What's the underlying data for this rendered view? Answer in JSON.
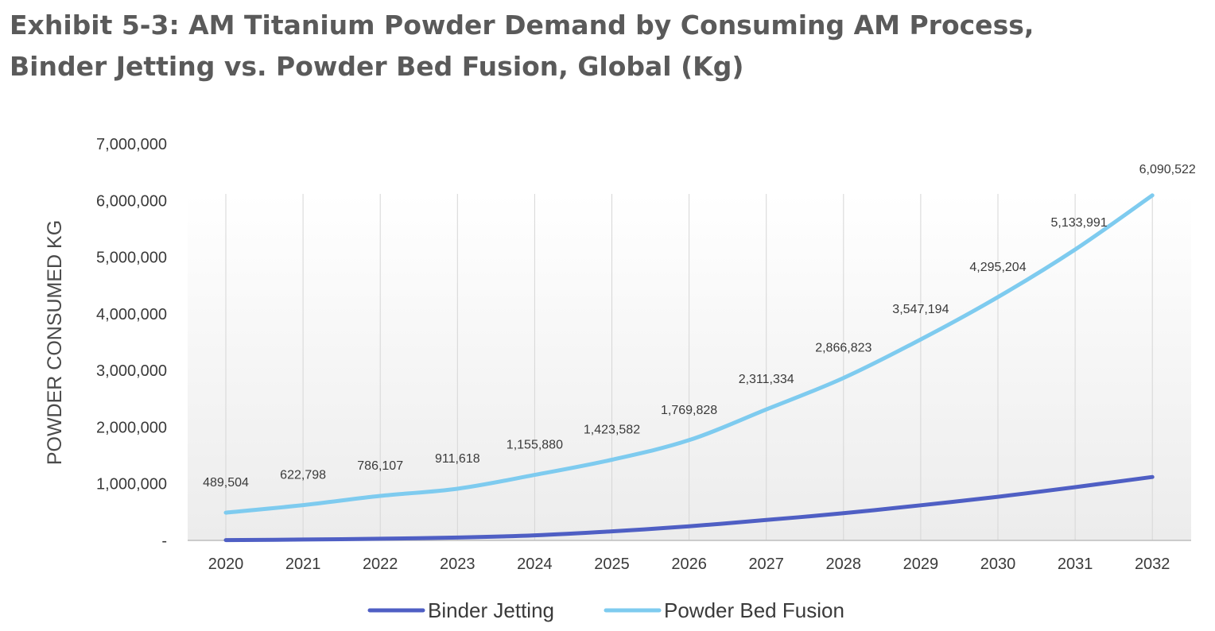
{
  "title": {
    "line1": "Exhibit 5-3: AM Titanium Powder Demand by Consuming AM Process,",
    "line2": "Binder Jetting vs. Powder Bed Fusion, Global (Kg)"
  },
  "chart_data": {
    "type": "line",
    "title": "Exhibit 5-3: AM Titanium Powder Demand by Consuming AM Process, Binder Jetting vs. Powder Bed Fusion, Global (Kg)",
    "xlabel": "",
    "ylabel": "POWDER CONSUMED KG",
    "categories": [
      "2020",
      "2021",
      "2022",
      "2023",
      "2024",
      "2025",
      "2026",
      "2027",
      "2028",
      "2029",
      "2030",
      "2031",
      "2032"
    ],
    "ylim": [
      0,
      7000000
    ],
    "yticks": [
      0,
      1000000,
      2000000,
      3000000,
      4000000,
      5000000,
      6000000,
      7000000
    ],
    "ytick_labels": [
      "-",
      "1,000,000",
      "2,000,000",
      "3,000,000",
      "4,000,000",
      "5,000,000",
      "6,000,000",
      "7,000,000"
    ],
    "legend_position": "bottom",
    "grid": "vertical lines at categories",
    "series": [
      {
        "name": "Binder Jetting",
        "color": "#4f5fc4",
        "values": [
          5000,
          15000,
          30000,
          50000,
          90000,
          160000,
          250000,
          360000,
          480000,
          620000,
          770000,
          940000,
          1120000
        ]
      },
      {
        "name": "Powder Bed Fusion",
        "color": "#7ecbef",
        "values": [
          489504,
          622798,
          786107,
          911618,
          1155880,
          1423582,
          1769828,
          2311334,
          2866823,
          3547194,
          4295204,
          5133991,
          6090522
        ],
        "data_labels": [
          "489,504",
          "622,798",
          "786,107",
          "911,618",
          "1,155,880",
          "1,423,582",
          "1,769,828",
          "2,311,334",
          "2,866,823",
          "3,547,194",
          "4,295,204",
          "5,133,991",
          "6,090,522"
        ]
      }
    ]
  }
}
